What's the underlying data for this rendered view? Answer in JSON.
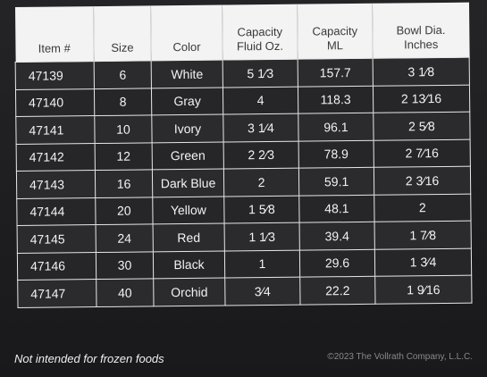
{
  "table": {
    "headers": [
      {
        "lines": [
          "Item #"
        ]
      },
      {
        "lines": [
          "Size"
        ]
      },
      {
        "lines": [
          "Color"
        ]
      },
      {
        "lines": [
          "Capacity",
          "Fluid Oz."
        ]
      },
      {
        "lines": [
          "Capacity",
          "ML"
        ]
      },
      {
        "lines": [
          "Bowl Dia.",
          "Inches"
        ]
      }
    ],
    "rows": [
      [
        "47139",
        "6",
        "White",
        "5 1⁄3",
        "157.7",
        "3 1⁄8"
      ],
      [
        "47140",
        "8",
        "Gray",
        "4",
        "118.3",
        "2 13⁄16"
      ],
      [
        "47141",
        "10",
        "Ivory",
        "3 1⁄4",
        "96.1",
        "2 5⁄8"
      ],
      [
        "47142",
        "12",
        "Green",
        "2 2⁄3",
        "78.9",
        "2 7⁄16"
      ],
      [
        "47143",
        "16",
        "Dark Blue",
        "2",
        "59.1",
        "2 3⁄16"
      ],
      [
        "47144",
        "20",
        "Yellow",
        "1 5⁄8",
        "48.1",
        "2"
      ],
      [
        "47145",
        "24",
        "Red",
        "1 1⁄3",
        "39.4",
        "1 7⁄8"
      ],
      [
        "47146",
        "30",
        "Black",
        "1",
        "29.6",
        "1 3⁄4"
      ],
      [
        "47147",
        "40",
        "Orchid",
        "3⁄4",
        "22.2",
        "1 9⁄16"
      ]
    ]
  },
  "footer": {
    "note": "Not intended for frozen foods",
    "copyright": "©2023 The Vollrath Company, L.L.C."
  }
}
